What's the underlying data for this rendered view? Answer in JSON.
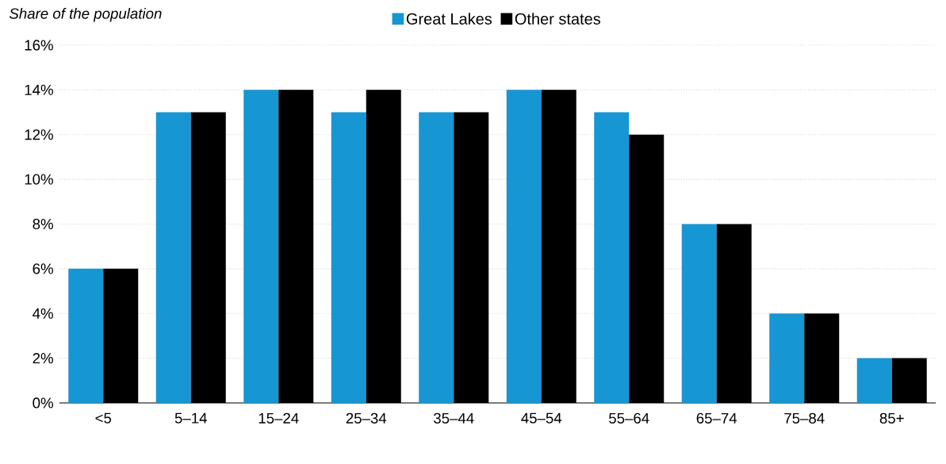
{
  "chart_data": {
    "type": "bar",
    "ylabel": "Share of the population",
    "categories": [
      "<5",
      "5–14",
      "15–24",
      "25–34",
      "35–44",
      "45–54",
      "55–64",
      "65–74",
      "75–84",
      "85+"
    ],
    "series": [
      {
        "name": "Great Lakes",
        "color": "#1696d2",
        "values": [
          6,
          13,
          14,
          13,
          13,
          14,
          13,
          8,
          4,
          2
        ]
      },
      {
        "name": "Other states",
        "color": "#000000",
        "values": [
          6,
          13,
          14,
          14,
          13,
          14,
          12,
          8,
          4,
          2
        ]
      }
    ],
    "ylim": [
      0,
      16
    ],
    "yticks": [
      {
        "value": 0,
        "label": "0%"
      },
      {
        "value": 2,
        "label": "2%"
      },
      {
        "value": 4,
        "label": "4%"
      },
      {
        "value": 6,
        "label": "6%"
      },
      {
        "value": 8,
        "label": "8%"
      },
      {
        "value": 10,
        "label": "10%"
      },
      {
        "value": 12,
        "label": "12%"
      },
      {
        "value": 14,
        "label": "14%"
      },
      {
        "value": 16,
        "label": "16%"
      }
    ],
    "grid": "y",
    "legend": "top"
  }
}
